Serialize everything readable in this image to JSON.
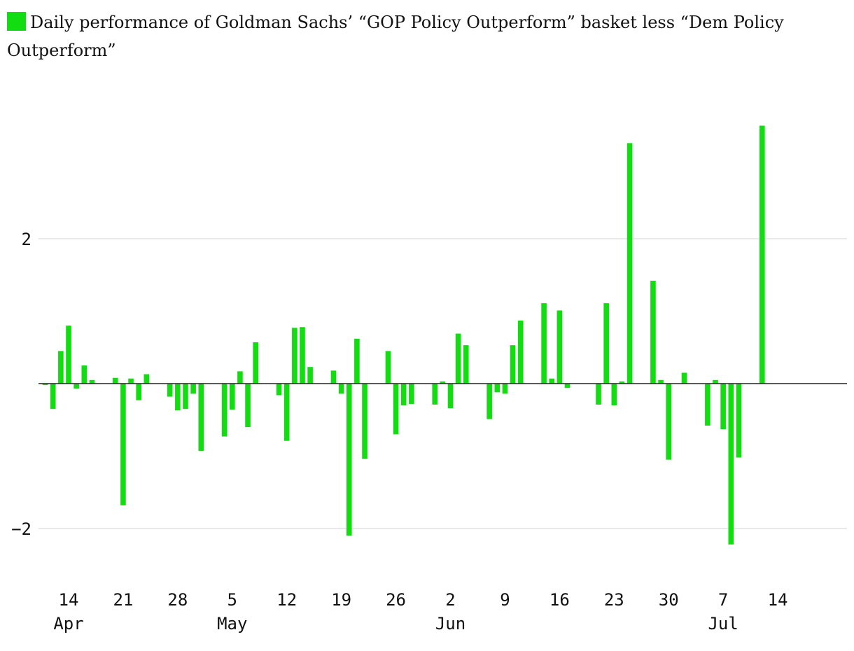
{
  "chart_data": {
    "type": "bar",
    "legend_label": "Daily performance of Goldman Sachs’ “GOP Policy Outperform” basket less “Dem Policy Outperform”",
    "legend_placement": "top-left",
    "color": "#11dd11",
    "ylim": [
      -2.7,
      3.6
    ],
    "yticks": [
      {
        "value": 2,
        "label": "2"
      },
      {
        "value": -2,
        "label": "−2"
      }
    ],
    "grid": true,
    "xlim_day": [
      9,
      107
    ],
    "day_origin": "2020-04-05",
    "xticks": [
      {
        "day": 9,
        "label": "14"
      },
      {
        "day": 16,
        "label": "21"
      },
      {
        "day": 23,
        "label": "28"
      },
      {
        "day": 30,
        "label": "5"
      },
      {
        "day": 37,
        "label": "12"
      },
      {
        "day": 44,
        "label": "19"
      },
      {
        "day": 51,
        "label": "26"
      },
      {
        "day": 58,
        "label": "2"
      },
      {
        "day": 65,
        "label": "9"
      },
      {
        "day": 72,
        "label": "16"
      },
      {
        "day": 79,
        "label": "23"
      },
      {
        "day": 86,
        "label": "30"
      },
      {
        "day": 93,
        "label": "7"
      },
      {
        "day": 100,
        "label": "14"
      }
    ],
    "month_labels": [
      {
        "day": 9,
        "label": "Apr"
      },
      {
        "day": 30,
        "label": "May"
      },
      {
        "day": 58,
        "label": "Jun"
      },
      {
        "day": 93,
        "label": "Jul"
      }
    ],
    "bars": [
      {
        "day": 6,
        "value": -0.02
      },
      {
        "day": 7,
        "value": -0.35
      },
      {
        "day": 8,
        "value": 0.45
      },
      {
        "day": 9,
        "value": 0.8
      },
      {
        "day": 10,
        "value": -0.07
      },
      {
        "day": 11,
        "value": 0.25
      },
      {
        "day": 12,
        "value": 0.05
      },
      {
        "day": 15,
        "value": 0.08
      },
      {
        "day": 16,
        "value": -1.68
      },
      {
        "day": 17,
        "value": 0.07
      },
      {
        "day": 18,
        "value": -0.23
      },
      {
        "day": 19,
        "value": 0.13
      },
      {
        "day": 22,
        "value": -0.18
      },
      {
        "day": 23,
        "value": -0.37
      },
      {
        "day": 24,
        "value": -0.35
      },
      {
        "day": 25,
        "value": -0.14
      },
      {
        "day": 26,
        "value": -0.93
      },
      {
        "day": 29,
        "value": -0.73
      },
      {
        "day": 30,
        "value": -0.36
      },
      {
        "day": 31,
        "value": 0.17
      },
      {
        "day": 32,
        "value": -0.6
      },
      {
        "day": 33,
        "value": 0.57
      },
      {
        "day": 36,
        "value": -0.16
      },
      {
        "day": 37,
        "value": -0.79
      },
      {
        "day": 38,
        "value": 0.77
      },
      {
        "day": 39,
        "value": 0.78
      },
      {
        "day": 40,
        "value": 0.23
      },
      {
        "day": 43,
        "value": 0.18
      },
      {
        "day": 44,
        "value": -0.14
      },
      {
        "day": 45,
        "value": -2.1
      },
      {
        "day": 46,
        "value": 0.62
      },
      {
        "day": 47,
        "value": -1.04
      },
      {
        "day": 50,
        "value": 0.45
      },
      {
        "day": 51,
        "value": -0.7
      },
      {
        "day": 52,
        "value": -0.3
      },
      {
        "day": 53,
        "value": -0.28
      },
      {
        "day": 56,
        "value": -0.29
      },
      {
        "day": 57,
        "value": 0.03
      },
      {
        "day": 58,
        "value": -0.34
      },
      {
        "day": 59,
        "value": 0.69
      },
      {
        "day": 60,
        "value": 0.53
      },
      {
        "day": 63,
        "value": -0.49
      },
      {
        "day": 64,
        "value": -0.12
      },
      {
        "day": 65,
        "value": -0.14
      },
      {
        "day": 66,
        "value": 0.53
      },
      {
        "day": 67,
        "value": 0.87
      },
      {
        "day": 70,
        "value": 1.11
      },
      {
        "day": 71,
        "value": 0.07
      },
      {
        "day": 72,
        "value": 1.01
      },
      {
        "day": 73,
        "value": -0.06
      },
      {
        "day": 77,
        "value": -0.29
      },
      {
        "day": 78,
        "value": 1.11
      },
      {
        "day": 79,
        "value": -0.3
      },
      {
        "day": 80,
        "value": 0.03
      },
      {
        "day": 81,
        "value": 3.32
      },
      {
        "day": 84,
        "value": 1.42
      },
      {
        "day": 85,
        "value": 0.05
      },
      {
        "day": 86,
        "value": -1.05
      },
      {
        "day": 88,
        "value": 0.15
      },
      {
        "day": 91,
        "value": -0.58
      },
      {
        "day": 92,
        "value": 0.05
      },
      {
        "day": 93,
        "value": -0.63
      },
      {
        "day": 94,
        "value": -2.22
      },
      {
        "day": 95,
        "value": -1.02
      },
      {
        "day": 98,
        "value": 3.56
      }
    ]
  }
}
